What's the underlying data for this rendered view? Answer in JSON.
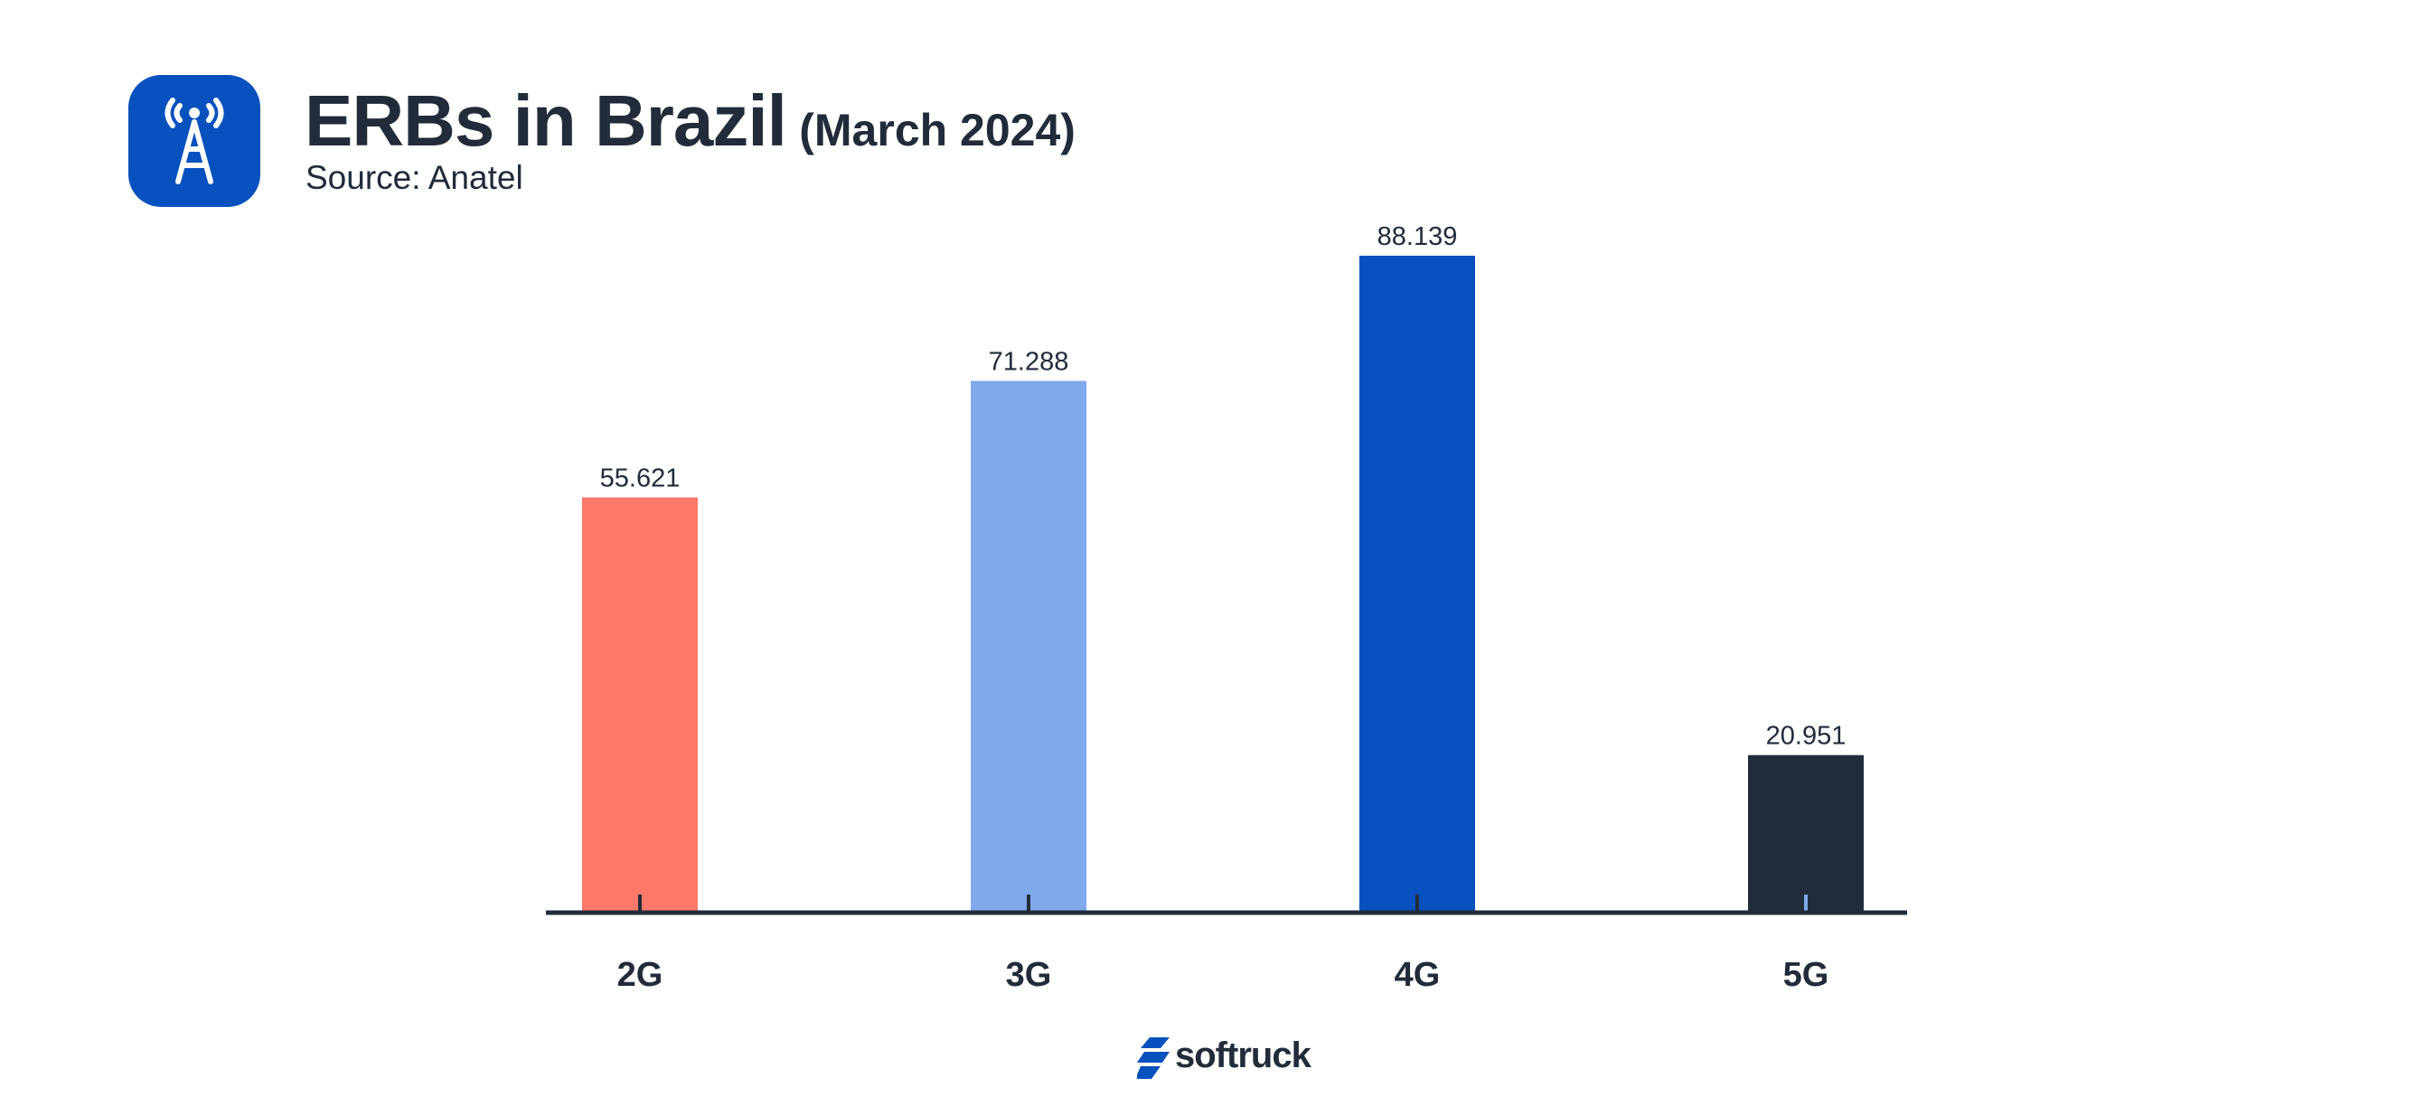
{
  "header": {
    "icon": "radio-tower-icon",
    "title": "ERBs in Brazil",
    "title_suffix": "(March 2024)",
    "subtitle": "Source: Anatel"
  },
  "chart_data": {
    "type": "bar",
    "title": "ERBs in Brazil (March 2024)",
    "subtitle": "Source: Anatel",
    "xlabel": "",
    "ylabel": "",
    "categories": [
      "2G",
      "3G",
      "4G",
      "5G"
    ],
    "values": [
      55621,
      71288,
      88139,
      20951
    ],
    "data_labels": [
      "55.621",
      "71.288",
      "88.139",
      "20.951"
    ],
    "colors": [
      "#ff7869",
      "#80a9ec",
      "#0751be",
      "#212b3a"
    ],
    "ylim": [
      0,
      88139
    ],
    "grid": false,
    "legend": "none"
  },
  "footer": {
    "brand_name": "softruck",
    "brand_icon": "softruck-logo-icon",
    "brand_color": "#0751be"
  }
}
